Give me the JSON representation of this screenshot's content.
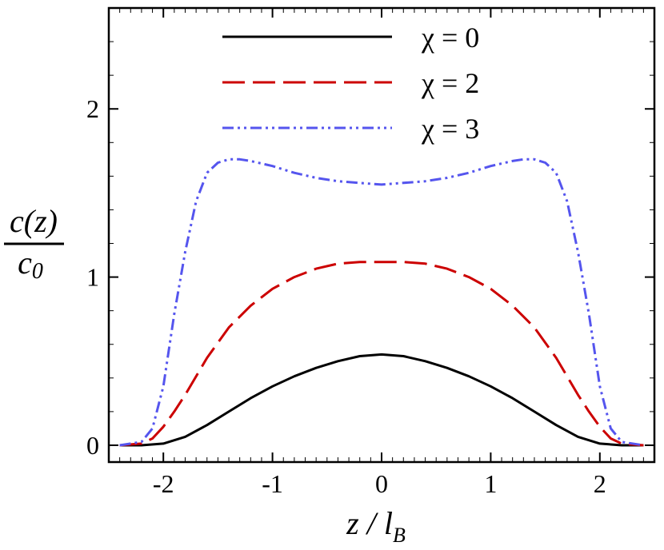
{
  "chart_data": {
    "type": "line",
    "xlabel": "z / l",
    "xlabel_sub": "B",
    "ylabel_num": "c(z)",
    "ylabel_den": "c",
    "ylabel_den_sub": "0",
    "xlim": [
      -2.5,
      2.5
    ],
    "ylim": [
      -0.1,
      2.6
    ],
    "xticks": [
      -2,
      -1,
      0,
      1,
      2
    ],
    "xtick_labels": [
      "-2",
      "-1",
      "0",
      "1",
      "2"
    ],
    "yticks": [
      0,
      1,
      2
    ],
    "ytick_labels": [
      "0",
      "1",
      "2"
    ],
    "grid": false,
    "legend_position": "top-center",
    "series": [
      {
        "name": "χ = 0",
        "color": "#000000",
        "style": "solid",
        "x": [
          -2.4,
          -2.2,
          -2.0,
          -1.8,
          -1.6,
          -1.4,
          -1.2,
          -1.0,
          -0.8,
          -0.6,
          -0.4,
          -0.2,
          0.0,
          0.2,
          0.4,
          0.6,
          0.8,
          1.0,
          1.2,
          1.4,
          1.6,
          1.8,
          2.0,
          2.2,
          2.4
        ],
        "y": [
          0.0,
          0.0,
          0.01,
          0.05,
          0.12,
          0.2,
          0.28,
          0.35,
          0.41,
          0.46,
          0.5,
          0.53,
          0.54,
          0.53,
          0.5,
          0.46,
          0.41,
          0.35,
          0.28,
          0.2,
          0.12,
          0.05,
          0.01,
          0.0,
          0.0
        ]
      },
      {
        "name": "χ = 2",
        "color": "#cc0000",
        "style": "dashed",
        "x": [
          -2.4,
          -2.2,
          -2.1,
          -2.0,
          -1.9,
          -1.8,
          -1.6,
          -1.4,
          -1.2,
          -1.0,
          -0.8,
          -0.6,
          -0.4,
          -0.2,
          0.0,
          0.2,
          0.4,
          0.6,
          0.8,
          1.0,
          1.2,
          1.4,
          1.6,
          1.8,
          1.9,
          2.0,
          2.1,
          2.2,
          2.4
        ],
        "y": [
          0.0,
          0.01,
          0.04,
          0.11,
          0.2,
          0.3,
          0.52,
          0.7,
          0.83,
          0.93,
          1.0,
          1.05,
          1.08,
          1.09,
          1.09,
          1.09,
          1.08,
          1.05,
          1.0,
          0.93,
          0.83,
          0.7,
          0.52,
          0.3,
          0.2,
          0.11,
          0.04,
          0.01,
          0.0
        ]
      },
      {
        "name": "χ = 3",
        "color": "#5555ee",
        "style": "dashdotdot",
        "x": [
          -2.4,
          -2.2,
          -2.1,
          -2.0,
          -1.9,
          -1.8,
          -1.7,
          -1.6,
          -1.5,
          -1.4,
          -1.3,
          -1.2,
          -1.0,
          -0.8,
          -0.6,
          -0.4,
          -0.2,
          0.0,
          0.2,
          0.4,
          0.6,
          0.8,
          1.0,
          1.2,
          1.3,
          1.4,
          1.5,
          1.6,
          1.7,
          1.8,
          1.9,
          2.0,
          2.1,
          2.2,
          2.4
        ],
        "y": [
          0.0,
          0.02,
          0.1,
          0.35,
          0.78,
          1.15,
          1.45,
          1.62,
          1.68,
          1.7,
          1.7,
          1.69,
          1.66,
          1.62,
          1.59,
          1.57,
          1.56,
          1.55,
          1.56,
          1.57,
          1.59,
          1.62,
          1.66,
          1.69,
          1.7,
          1.7,
          1.68,
          1.62,
          1.45,
          1.15,
          0.78,
          0.35,
          0.1,
          0.02,
          0.0
        ]
      }
    ]
  }
}
